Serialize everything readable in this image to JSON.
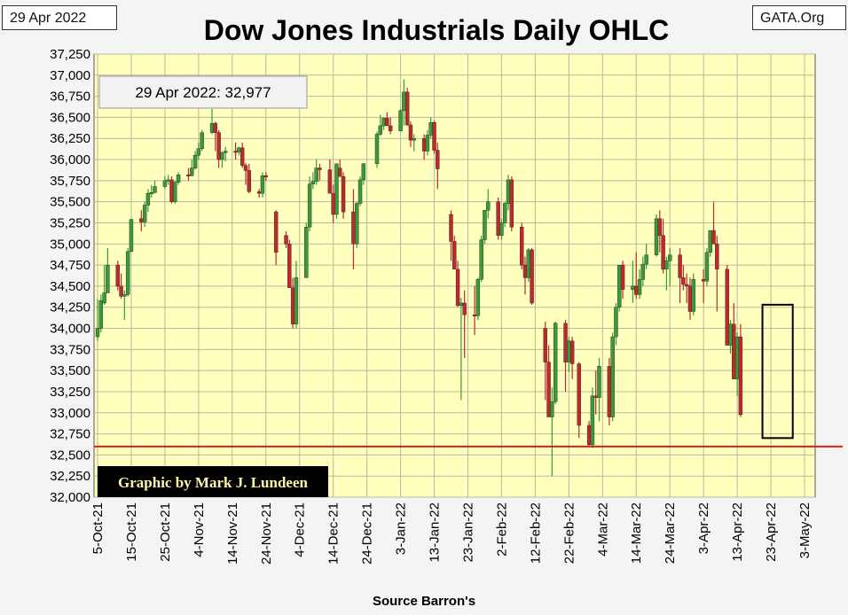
{
  "header": {
    "date_label": "29 Apr 2022",
    "site_label": "GATA.Org",
    "title": "Dow Jones Industrials Daily OHLC"
  },
  "footer": {
    "source": "Source Barron's"
  },
  "colors": {
    "plot_bg": "#ffffbe",
    "grid": "#b8b8a0",
    "up": "#3a9a3a",
    "down": "#c0282d",
    "refline": "#d42020",
    "credit_bg": "#000000",
    "credit_text": "#fff5a8"
  },
  "chart_data": {
    "type": "ohlc",
    "title": "Dow Jones Industrials Daily OHLC",
    "ylim": [
      32000,
      37250
    ],
    "yticks": [
      "32,000",
      "32,250",
      "32,500",
      "32,750",
      "33,000",
      "33,250",
      "33,500",
      "33,750",
      "34,000",
      "34,250",
      "34,500",
      "34,750",
      "35,000",
      "35,250",
      "35,500",
      "35,750",
      "36,000",
      "36,250",
      "36,500",
      "36,750",
      "37,000",
      "37,250"
    ],
    "xlim_day_offsets": [
      0,
      210
    ],
    "xticks": [
      {
        "label": "5-Oct-21",
        "day": 0
      },
      {
        "label": "15-Oct-21",
        "day": 10
      },
      {
        "label": "25-Oct-21",
        "day": 20
      },
      {
        "label": "4-Nov-21",
        "day": 30
      },
      {
        "label": "14-Nov-21",
        "day": 40
      },
      {
        "label": "24-Nov-21",
        "day": 50
      },
      {
        "label": "4-Dec-21",
        "day": 60
      },
      {
        "label": "14-Dec-21",
        "day": 70
      },
      {
        "label": "24-Dec-21",
        "day": 80
      },
      {
        "label": "3-Jan-22",
        "day": 90
      },
      {
        "label": "13-Jan-22",
        "day": 100
      },
      {
        "label": "23-Jan-22",
        "day": 110
      },
      {
        "label": "2-Feb-22",
        "day": 120
      },
      {
        "label": "12-Feb-22",
        "day": 130
      },
      {
        "label": "22-Feb-22",
        "day": 140
      },
      {
        "label": "4-Mar-22",
        "day": 150
      },
      {
        "label": "14-Mar-22",
        "day": 160
      },
      {
        "label": "24-Mar-22",
        "day": 170
      },
      {
        "label": "3-Apr-22",
        "day": 180
      },
      {
        "label": "13-Apr-22",
        "day": 190
      },
      {
        "label": "23-Apr-22",
        "day": 200
      },
      {
        "label": "3-May-22",
        "day": 210
      }
    ],
    "annotation": "29 Apr 2022: 32,977",
    "credit": "Graphic by Mark J. Lundeen",
    "reference_line": 32600,
    "highlight_box": {
      "day_start": 197.5,
      "day_end": 206.5,
      "low": 32700,
      "high": 34280
    },
    "series_columns": [
      "day_offset",
      "open",
      "high",
      "low",
      "close"
    ],
    "series": [
      [
        0,
        33900,
        34350,
        33850,
        34000
      ],
      [
        1,
        34000,
        34400,
        33950,
        34330
      ],
      [
        2,
        34300,
        34750,
        34280,
        34420
      ],
      [
        3,
        34420,
        34950,
        34420,
        34750
      ],
      [
        6,
        34750,
        34800,
        34450,
        34500
      ],
      [
        7,
        34500,
        34650,
        34350,
        34380
      ],
      [
        8,
        34380,
        34450,
        34100,
        34400
      ],
      [
        9,
        34400,
        34950,
        34380,
        34910
      ],
      [
        10,
        34910,
        35300,
        34900,
        35290
      ],
      [
        13,
        35300,
        35400,
        35150,
        35260
      ],
      [
        14,
        35260,
        35500,
        35200,
        35460
      ],
      [
        15,
        35460,
        35650,
        35380,
        35600
      ],
      [
        16,
        35600,
        35700,
        35550,
        35610
      ],
      [
        17,
        35610,
        35750,
        35600,
        35680
      ],
      [
        20,
        35680,
        35800,
        35650,
        35750
      ],
      [
        21,
        35750,
        35820,
        35700,
        35760
      ],
      [
        22,
        35760,
        35800,
        35480,
        35500
      ],
      [
        23,
        35500,
        35750,
        35480,
        35730
      ],
      [
        24,
        35730,
        35850,
        35700,
        35820
      ],
      [
        27,
        35820,
        35900,
        35750,
        35810
      ],
      [
        28,
        35810,
        36000,
        35800,
        35900
      ],
      [
        29,
        35900,
        36100,
        35880,
        36050
      ],
      [
        30,
        36050,
        36200,
        36000,
        36130
      ],
      [
        31,
        36130,
        36350,
        36100,
        36320
      ],
      [
        34,
        36320,
        36600,
        36300,
        36430
      ],
      [
        35,
        36430,
        36450,
        36100,
        36320
      ],
      [
        36,
        36320,
        36350,
        35900,
        36000
      ],
      [
        37,
        36000,
        36100,
        35900,
        36080
      ],
      [
        38,
        36080,
        36150,
        35980,
        36100
      ],
      [
        41,
        36100,
        36200,
        36000,
        36090
      ],
      [
        42,
        36090,
        36150,
        36050,
        36140
      ],
      [
        43,
        36140,
        36200,
        35900,
        35930
      ],
      [
        44,
        35930,
        35960,
        35700,
        35870
      ],
      [
        45,
        35870,
        35950,
        35600,
        35620
      ],
      [
        48,
        35620,
        35650,
        35550,
        35600
      ],
      [
        49,
        35600,
        35850,
        35550,
        35810
      ],
      [
        50,
        35810,
        35850,
        35750,
        35800
      ],
      [
        53,
        35380,
        35400,
        34750,
        34900
      ],
      [
        56,
        35100,
        35150,
        34950,
        35000
      ],
      [
        57,
        35000,
        35050,
        34500,
        34480
      ],
      [
        58,
        34480,
        34600,
        34000,
        34050
      ],
      [
        59,
        34050,
        34800,
        34000,
        34600
      ],
      [
        62,
        34600,
        35250,
        34600,
        35200
      ],
      [
        63,
        35200,
        35800,
        35150,
        35710
      ],
      [
        64,
        35710,
        35850,
        35650,
        35740
      ],
      [
        65,
        35740,
        36000,
        35700,
        35900
      ],
      [
        66,
        35900,
        35950,
        35750,
        35880
      ],
      [
        69,
        35880,
        36000,
        35750,
        35600
      ],
      [
        70,
        35600,
        35700,
        35250,
        35350
      ],
      [
        71,
        35350,
        35950,
        35300,
        35950
      ],
      [
        72,
        35900,
        36000,
        35800,
        35800
      ],
      [
        73,
        35800,
        35850,
        35300,
        35380
      ],
      [
        76,
        35380,
        35650,
        34700,
        35000
      ],
      [
        77,
        35000,
        35500,
        34950,
        35480
      ],
      [
        78,
        35480,
        35800,
        35450,
        35760
      ],
      [
        79,
        35760,
        35960,
        35700,
        35950
      ],
      [
        83,
        35950,
        36330,
        35900,
        36300
      ],
      [
        84,
        36300,
        36530,
        36280,
        36400
      ],
      [
        85,
        36400,
        36500,
        36350,
        36490
      ],
      [
        86,
        36490,
        36560,
        36420,
        36400
      ],
      [
        87,
        36400,
        36500,
        36300,
        36340
      ],
      [
        90,
        36340,
        36600,
        36330,
        36580
      ],
      [
        91,
        36580,
        36950,
        36400,
        36800
      ],
      [
        92,
        36800,
        36850,
        36400,
        36410
      ],
      [
        93,
        36410,
        36450,
        36150,
        36230
      ],
      [
        94,
        36230,
        36300,
        36100,
        36250
      ],
      [
        97,
        36250,
        36300,
        36000,
        36100
      ],
      [
        98,
        36100,
        36350,
        36050,
        36290
      ],
      [
        99,
        36290,
        36500,
        36250,
        36440
      ],
      [
        100,
        36440,
        36460,
        36070,
        36110
      ],
      [
        101,
        36110,
        36200,
        35650,
        35890
      ],
      [
        105,
        35350,
        35400,
        34800,
        35030
      ],
      [
        106,
        35030,
        35100,
        34750,
        34700
      ],
      [
        107,
        34700,
        34800,
        34250,
        34270
      ],
      [
        108,
        34270,
        34360,
        33150,
        34300
      ],
      [
        109,
        34300,
        34450,
        33650,
        34160
      ],
      [
        112,
        34160,
        34500,
        33920,
        34150
      ],
      [
        113,
        34150,
        34600,
        34100,
        34580
      ],
      [
        114,
        34580,
        35100,
        34550,
        35050
      ],
      [
        115,
        35050,
        35400,
        35000,
        35400
      ],
      [
        116,
        35400,
        35650,
        35300,
        35500
      ],
      [
        119,
        35500,
        35550,
        35050,
        35100
      ],
      [
        120,
        35100,
        35300,
        35050,
        35250
      ],
      [
        121,
        35250,
        35500,
        35200,
        35480
      ],
      [
        122,
        35480,
        35820,
        35400,
        35760
      ],
      [
        123,
        35760,
        35800,
        35150,
        35200
      ],
      [
        126,
        35200,
        35250,
        34700,
        34750
      ],
      [
        127,
        34750,
        34850,
        34400,
        34600
      ],
      [
        128,
        34600,
        34950,
        34550,
        34930
      ],
      [
        129,
        34930,
        34950,
        34280,
        34300
      ],
      [
        133,
        34000,
        34080,
        33150,
        33600
      ],
      [
        134,
        33600,
        33800,
        33050,
        32950
      ],
      [
        135,
        32950,
        33300,
        32250,
        33130
      ],
      [
        136,
        33130,
        34080,
        33100,
        34060
      ],
      [
        139,
        34060,
        34100,
        33250,
        33600
      ],
      [
        140,
        33600,
        33900,
        33480,
        33850
      ],
      [
        141,
        33850,
        33900,
        33400,
        33580
      ],
      [
        143,
        33580,
        33600,
        32700,
        32850
      ],
      [
        146,
        32850,
        32900,
        32600,
        32620
      ],
      [
        147,
        32620,
        33300,
        32580,
        33200
      ],
      [
        148,
        33200,
        33500,
        32980,
        33180
      ],
      [
        149,
        33180,
        33650,
        32900,
        33550
      ],
      [
        152,
        33550,
        33650,
        32850,
        32950
      ],
      [
        153,
        32950,
        33950,
        32900,
        33900
      ],
      [
        154,
        33900,
        34300,
        33800,
        34250
      ],
      [
        155,
        34250,
        34750,
        34200,
        34750
      ],
      [
        156,
        34750,
        34800,
        34350,
        34460
      ],
      [
        159,
        34460,
        34800,
        34300,
        34500
      ],
      [
        160,
        34500,
        34900,
        34350,
        34400
      ],
      [
        161,
        34400,
        34700,
        34350,
        34580
      ],
      [
        162,
        34580,
        34850,
        34500,
        34760
      ],
      [
        163,
        34760,
        35000,
        34700,
        34870
      ],
      [
        166,
        34870,
        35350,
        34850,
        35300
      ],
      [
        167,
        35300,
        35400,
        34900,
        35100
      ],
      [
        168,
        35100,
        35300,
        34650,
        34700
      ],
      [
        169,
        34700,
        34850,
        34450,
        34800
      ],
      [
        170,
        34800,
        34950,
        34500,
        34870
      ],
      [
        173,
        34870,
        34950,
        34300,
        34600
      ],
      [
        174,
        34600,
        34750,
        34450,
        34520
      ],
      [
        175,
        34520,
        34650,
        34300,
        34500
      ],
      [
        176,
        34500,
        34600,
        34100,
        34200
      ],
      [
        177,
        34200,
        34650,
        34150,
        34580
      ],
      [
        180,
        34580,
        34700,
        34300,
        34560
      ],
      [
        181,
        34560,
        34950,
        34500,
        34900
      ],
      [
        182,
        34900,
        35100,
        34850,
        35160
      ],
      [
        183,
        35160,
        35500,
        35000,
        35000
      ],
      [
        184,
        35000,
        35100,
        34200,
        34700
      ],
      [
        187,
        34700,
        34750,
        33850,
        33800
      ],
      [
        188,
        33800,
        34100,
        33700,
        34050
      ],
      [
        189,
        34050,
        34300,
        33550,
        33400
      ],
      [
        190,
        33400,
        33950,
        33200,
        33900
      ],
      [
        191,
        33900,
        34050,
        32950,
        32977
      ]
    ]
  }
}
